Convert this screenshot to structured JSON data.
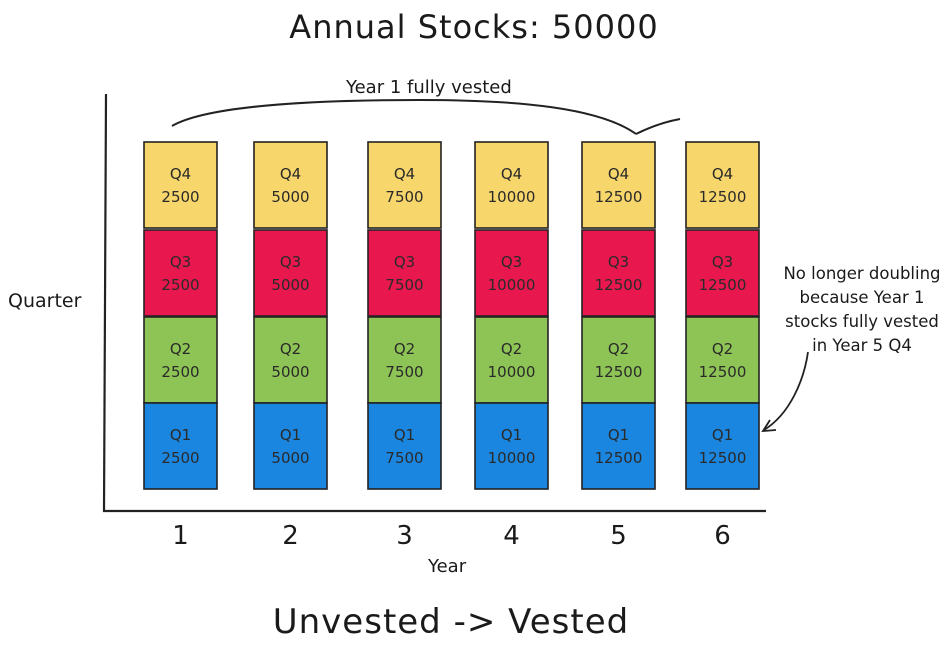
{
  "title": "Annual Stocks: 50000",
  "footer": "Unvested -> Vested",
  "axis": {
    "y_label": "Quarter",
    "x_label": "Year"
  },
  "annotations": {
    "brace_label": "Year 1 fully vested",
    "note_lines": [
      "No longer doubling",
      "because Year 1",
      "stocks fully vested",
      "in Year 5 Q4"
    ]
  },
  "colors": {
    "Q1": "#1a86e0",
    "Q2": "#8ec455",
    "Q3": "#e8184f",
    "Q4": "#f7d66c",
    "stroke": "#222222"
  },
  "chart_data": {
    "type": "table",
    "years": [
      "1",
      "2",
      "3",
      "4",
      "5",
      "6"
    ],
    "quarters": [
      "Q1",
      "Q2",
      "Q3",
      "Q4"
    ],
    "values": {
      "Q1": [
        "2500",
        "5000",
        "7500",
        "10000",
        "12500",
        "12500"
      ],
      "Q2": [
        "2500",
        "5000",
        "7500",
        "10000",
        "12500",
        "12500"
      ],
      "Q3": [
        "2500",
        "5000",
        "7500",
        "10000",
        "12500",
        "12500"
      ],
      "Q4": [
        "2500",
        "5000",
        "7500",
        "10000",
        "12500",
        "12500"
      ]
    }
  }
}
